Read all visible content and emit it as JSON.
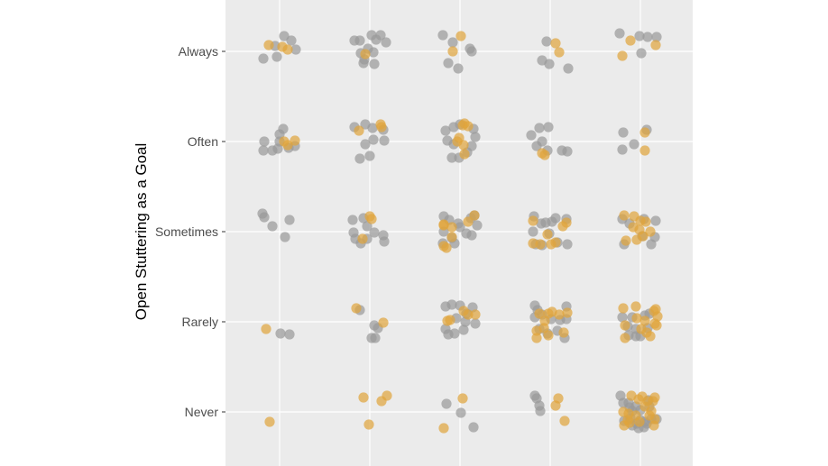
{
  "chart_data": {
    "type": "scatter",
    "title": "",
    "xlabel": "",
    "ylabel": "Open Stuttering as a Goal",
    "y_categories": [
      "Never",
      "Rarely",
      "Sometimes",
      "Often",
      "Always"
    ],
    "x_columns": [
      1,
      2,
      3,
      4,
      5
    ],
    "x_tick_labels_visible": false,
    "grid": true,
    "legend": "none",
    "jitter": true,
    "colors": {
      "panel": "#ebebeb",
      "grid": "#ffffff",
      "tick": "#333333",
      "gray_point": "#999999",
      "orange_point": "#e0a43a"
    },
    "point_alpha": 0.7,
    "series": [
      {
        "color": "gray",
        "points": [
          [
            1.0,
            4.0
          ],
          [
            0.95,
            5.06
          ],
          [
            1.05,
            5.17
          ],
          [
            1.13,
            5.12
          ],
          [
            1.18,
            5.02
          ],
          [
            0.82,
            4.92
          ],
          [
            0.97,
            4.94
          ],
          [
            1.89,
            5.12
          ],
          [
            2.02,
            5.18
          ],
          [
            2.12,
            5.18
          ],
          [
            2.18,
            5.1
          ],
          [
            1.83,
            5.12
          ],
          [
            1.9,
            4.98
          ],
          [
            1.94,
            4.91
          ],
          [
            2.05,
            4.86
          ],
          [
            1.93,
            4.87
          ],
          [
            2.04,
            4.99
          ],
          [
            1.98,
            5.03
          ],
          [
            2.07,
            5.13
          ],
          [
            2.81,
            5.18
          ],
          [
            2.92,
            5.1
          ],
          [
            3.11,
            5.03
          ],
          [
            3.13,
            5.0
          ],
          [
            2.87,
            4.87
          ],
          [
            2.98,
            4.81
          ],
          [
            3.96,
            5.11
          ],
          [
            3.91,
            4.9
          ],
          [
            3.99,
            4.86
          ],
          [
            4.2,
            4.81
          ],
          [
            4.77,
            5.2
          ],
          [
            4.99,
            5.17
          ],
          [
            5.08,
            5.16
          ],
          [
            5.18,
            5.16
          ],
          [
            5.01,
            4.98
          ],
          [
            0.83,
            4.0
          ],
          [
            0.98,
            3.92
          ],
          [
            1.04,
            4.14
          ],
          [
            1.0,
            4.08
          ],
          [
            1.1,
            3.93
          ],
          [
            1.17,
            3.95
          ],
          [
            0.82,
            3.9
          ],
          [
            0.92,
            3.9
          ],
          [
            1.83,
            4.16
          ],
          [
            1.95,
            4.19
          ],
          [
            2.03,
            4.15
          ],
          [
            2.15,
            4.13
          ],
          [
            2.16,
            4.01
          ],
          [
            2.04,
            4.02
          ],
          [
            1.89,
            3.81
          ],
          [
            2.0,
            3.84
          ],
          [
            1.95,
            3.97
          ],
          [
            2.93,
            4.16
          ],
          [
            3.0,
            4.19
          ],
          [
            3.15,
            4.14
          ],
          [
            2.84,
            4.12
          ],
          [
            2.86,
            4.01
          ],
          [
            2.93,
            3.97
          ],
          [
            2.99,
            3.82
          ],
          [
            3.17,
            4.05
          ],
          [
            3.13,
            3.95
          ],
          [
            3.08,
            3.88
          ],
          [
            2.91,
            3.82
          ],
          [
            3.79,
            4.07
          ],
          [
            3.88,
            4.15
          ],
          [
            3.98,
            4.16
          ],
          [
            3.91,
            4.0
          ],
          [
            3.85,
            3.95
          ],
          [
            4.13,
            3.9
          ],
          [
            4.19,
            3.89
          ],
          [
            3.97,
            3.9
          ],
          [
            4.81,
            4.1
          ],
          [
            4.93,
            3.97
          ],
          [
            5.07,
            4.13
          ],
          [
            4.8,
            3.91
          ],
          [
            0.81,
            3.2
          ],
          [
            0.83,
            3.16
          ],
          [
            0.92,
            3.06
          ],
          [
            1.11,
            3.13
          ],
          [
            1.06,
            2.94
          ],
          [
            1.81,
            3.13
          ],
          [
            1.93,
            3.15
          ],
          [
            1.82,
            2.99
          ],
          [
            1.84,
            2.92
          ],
          [
            1.9,
            2.87
          ],
          [
            1.97,
            2.92
          ],
          [
            2.05,
            2.99
          ],
          [
            2.15,
            2.96
          ],
          [
            2.16,
            2.89
          ],
          [
            1.97,
            3.06
          ],
          [
            2.82,
            3.17
          ],
          [
            2.88,
            3.13
          ],
          [
            2.98,
            3.09
          ],
          [
            3.12,
            3.15
          ],
          [
            3.16,
            3.18
          ],
          [
            2.82,
            3.0
          ],
          [
            2.91,
            2.93
          ],
          [
            3.0,
            3.05
          ],
          [
            3.07,
            2.98
          ],
          [
            3.13,
            2.96
          ],
          [
            2.81,
            2.87
          ],
          [
            2.94,
            2.87
          ],
          [
            3.19,
            3.07
          ],
          [
            3.82,
            3.17
          ],
          [
            3.9,
            3.09
          ],
          [
            3.95,
            3.1
          ],
          [
            4.02,
            3.11
          ],
          [
            4.06,
            3.15
          ],
          [
            4.18,
            3.14
          ],
          [
            3.81,
            3.0
          ],
          [
            3.99,
            2.98
          ],
          [
            4.08,
            2.88
          ],
          [
            4.19,
            2.86
          ],
          [
            3.84,
            2.86
          ],
          [
            3.91,
            2.85
          ],
          [
            4.8,
            3.14
          ],
          [
            4.88,
            3.09
          ],
          [
            5.04,
            3.14
          ],
          [
            5.17,
            3.12
          ],
          [
            4.82,
            2.86
          ],
          [
            5.02,
            2.95
          ],
          [
            5.12,
            2.86
          ],
          [
            5.16,
            2.94
          ],
          [
            1.01,
            1.87
          ],
          [
            1.11,
            1.86
          ],
          [
            1.89,
            2.13
          ],
          [
            2.05,
            1.96
          ],
          [
            2.06,
            1.82
          ],
          [
            2.02,
            1.82
          ],
          [
            2.09,
            1.93
          ],
          [
            2.84,
            2.17
          ],
          [
            2.91,
            2.19
          ],
          [
            3.0,
            2.18
          ],
          [
            3.14,
            2.16
          ],
          [
            3.07,
            2.09
          ],
          [
            2.96,
            2.04
          ],
          [
            3.06,
            2.0
          ],
          [
            3.04,
            1.91
          ],
          [
            2.84,
            1.92
          ],
          [
            2.87,
            1.86
          ],
          [
            2.94,
            1.87
          ],
          [
            3.17,
            1.98
          ],
          [
            3.83,
            2.18
          ],
          [
            3.86,
            2.13
          ],
          [
            4.18,
            2.17
          ],
          [
            3.83,
            2.05
          ],
          [
            3.91,
            2.08
          ],
          [
            4.01,
            2.03
          ],
          [
            4.11,
            2.02
          ],
          [
            4.18,
            2.03
          ],
          [
            3.88,
            1.92
          ],
          [
            3.97,
            1.87
          ],
          [
            4.08,
            1.9
          ],
          [
            4.16,
            1.82
          ],
          [
            4.8,
            2.05
          ],
          [
            4.91,
            2.05
          ],
          [
            5.05,
            2.07
          ],
          [
            5.1,
            2.09
          ],
          [
            4.86,
            1.95
          ],
          [
            4.95,
            1.92
          ],
          [
            5.08,
            1.93
          ],
          [
            4.87,
            1.85
          ],
          [
            4.95,
            1.84
          ],
          [
            5.0,
            1.84
          ],
          [
            2.85,
            1.09
          ],
          [
            3.01,
            0.99
          ],
          [
            3.15,
            0.83
          ],
          [
            3.83,
            1.18
          ],
          [
            3.85,
            1.15
          ],
          [
            3.88,
            1.07
          ],
          [
            3.89,
            1.01
          ],
          [
            4.78,
            1.18
          ],
          [
            4.81,
            1.1
          ],
          [
            4.87,
            1.1
          ],
          [
            4.88,
            1.05
          ],
          [
            4.91,
            1.01
          ],
          [
            4.95,
            1.06
          ],
          [
            5.0,
            1.02
          ],
          [
            5.09,
            1.13
          ],
          [
            5.1,
            1.06
          ],
          [
            4.82,
            0.9
          ],
          [
            4.89,
            0.93
          ],
          [
            4.96,
            0.87
          ],
          [
            5.0,
            0.91
          ],
          [
            5.05,
            0.89
          ],
          [
            5.12,
            0.92
          ],
          [
            5.18,
            0.92
          ],
          [
            4.91,
            0.85
          ],
          [
            4.98,
            0.82
          ],
          [
            5.04,
            0.83
          ],
          [
            5.07,
            0.87
          ]
        ]
      },
      {
        "color": "orange",
        "points": [
          [
            0.88,
            5.07
          ],
          [
            1.03,
            5.05
          ],
          [
            1.09,
            5.02
          ],
          [
            1.95,
            4.97
          ],
          [
            3.01,
            5.17
          ],
          [
            2.92,
            5.0
          ],
          [
            4.06,
            5.09
          ],
          [
            4.1,
            4.99
          ],
          [
            4.89,
            5.12
          ],
          [
            5.17,
            5.07
          ],
          [
            4.8,
            4.95
          ],
          [
            1.17,
            4.01
          ],
          [
            1.05,
            4.0
          ],
          [
            1.09,
            3.96
          ],
          [
            2.12,
            4.19
          ],
          [
            1.88,
            4.12
          ],
          [
            2.13,
            4.16
          ],
          [
            3.05,
            4.2
          ],
          [
            3.03,
            4.18
          ],
          [
            3.09,
            4.17
          ],
          [
            2.99,
            4.04
          ],
          [
            2.97,
            4.0
          ],
          [
            3.04,
            3.96
          ],
          [
            3.05,
            3.86
          ],
          [
            3.91,
            3.87
          ],
          [
            3.94,
            3.85
          ],
          [
            5.05,
            4.1
          ],
          [
            5.05,
            3.9
          ],
          [
            2.0,
            3.17
          ],
          [
            2.02,
            3.14
          ],
          [
            1.92,
            2.92
          ],
          [
            2.82,
            3.08
          ],
          [
            2.82,
            2.84
          ],
          [
            2.91,
            3.05
          ],
          [
            2.82,
            3.07
          ],
          [
            2.85,
            2.82
          ],
          [
            2.91,
            2.94
          ],
          [
            3.09,
            3.11
          ],
          [
            3.16,
            3.18
          ],
          [
            3.81,
            3.12
          ],
          [
            4.18,
            3.1
          ],
          [
            3.81,
            2.87
          ],
          [
            3.89,
            2.86
          ],
          [
            3.97,
            2.97
          ],
          [
            4.01,
            2.86
          ],
          [
            4.06,
            2.88
          ],
          [
            4.14,
            3.06
          ],
          [
            4.82,
            3.18
          ],
          [
            4.93,
            3.17
          ],
          [
            5.0,
            3.12
          ],
          [
            5.06,
            3.11
          ],
          [
            4.92,
            3.05
          ],
          [
            4.99,
            3.02
          ],
          [
            5.03,
            2.95
          ],
          [
            5.11,
            3.0
          ],
          [
            4.84,
            2.9
          ],
          [
            4.96,
            2.91
          ],
          [
            0.85,
            1.92
          ],
          [
            1.85,
            2.15
          ],
          [
            2.15,
            1.99
          ],
          [
            2.86,
            2.01
          ],
          [
            2.89,
            2.02
          ],
          [
            3.04,
            2.12
          ],
          [
            3.09,
            2.08
          ],
          [
            3.17,
            2.08
          ],
          [
            3.88,
            2.09
          ],
          [
            3.94,
            2.01
          ],
          [
            3.98,
            2.09
          ],
          [
            4.02,
            2.11
          ],
          [
            4.1,
            2.08
          ],
          [
            4.19,
            2.1
          ],
          [
            3.85,
            1.9
          ],
          [
            3.93,
            1.93
          ],
          [
            3.85,
            1.82
          ],
          [
            3.98,
            1.85
          ],
          [
            4.15,
            1.88
          ],
          [
            4.81,
            2.15
          ],
          [
            4.95,
            2.17
          ],
          [
            5.15,
            2.12
          ],
          [
            5.17,
            2.14
          ],
          [
            4.96,
            2.04
          ],
          [
            5.05,
            2.01
          ],
          [
            5.16,
            1.98
          ],
          [
            5.19,
            2.06
          ],
          [
            4.83,
            1.96
          ],
          [
            5.01,
            1.92
          ],
          [
            5.07,
            1.88
          ],
          [
            5.18,
            1.96
          ],
          [
            4.83,
            1.82
          ],
          [
            5.11,
            1.84
          ],
          [
            0.89,
            0.89
          ],
          [
            1.93,
            1.16
          ],
          [
            2.13,
            1.12
          ],
          [
            2.19,
            1.18
          ],
          [
            1.99,
            0.86
          ],
          [
            3.03,
            1.15
          ],
          [
            2.82,
            0.82
          ],
          [
            4.09,
            1.15
          ],
          [
            4.06,
            1.07
          ],
          [
            4.16,
            0.9
          ],
          [
            4.81,
            1.0
          ],
          [
            4.9,
            1.18
          ],
          [
            4.98,
            1.14
          ],
          [
            5.02,
            1.17
          ],
          [
            5.08,
            1.12
          ],
          [
            5.14,
            1.12
          ],
          [
            5.16,
            1.16
          ],
          [
            5.05,
            1.06
          ],
          [
            5.12,
            1.01
          ],
          [
            4.87,
            0.98
          ],
          [
            4.86,
            0.91
          ],
          [
            4.95,
            0.96
          ],
          [
            5.1,
            0.96
          ],
          [
            5.16,
            0.92
          ],
          [
            4.88,
            0.88
          ],
          [
            4.82,
            0.85
          ],
          [
            4.99,
            0.89
          ],
          [
            5.15,
            0.85
          ]
        ]
      }
    ]
  }
}
